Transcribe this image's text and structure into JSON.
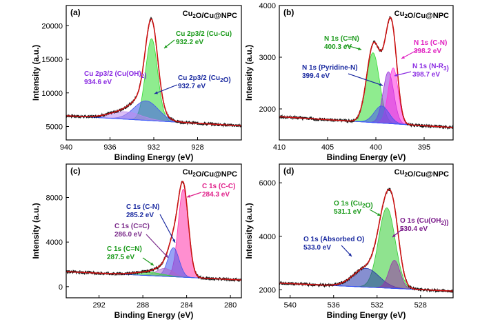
{
  "chart_data": [
    {
      "type": "line",
      "panel_label": "(a)",
      "title": "Cu2O/Cu@NPC",
      "xlabel": "Binding Energy (eV)",
      "ylabel": "Intensity (a.u.)",
      "xlim": [
        940,
        924
      ],
      "ylim": [
        3000,
        23000
      ],
      "xticks": [
        940,
        936,
        932,
        928
      ],
      "yticks": [
        5000,
        10000,
        15000,
        20000
      ],
      "baseline": {
        "x": [
          940,
          924
        ],
        "y": [
          6600,
          5100
        ]
      },
      "components": [
        {
          "name": "Cu 2p3/2 (Cu-Cu)",
          "center": 932.2,
          "fwhm": 1.3,
          "height": 12200,
          "color": "#33dd33"
        },
        {
          "name": "Cu 2p3/2 (Cu2O)",
          "center": 932.7,
          "fwhm": 2.6,
          "height": 2900,
          "color": "#4455ee"
        },
        {
          "name": "Cu 2p3/2 (Cu(OH)2)",
          "center": 934.6,
          "fwhm": 3.4,
          "height": 1100,
          "color": "#bb88ee"
        }
      ],
      "annotations": [
        {
          "lines": [
            "Cu 2p3/2 (Cu-Cu)",
            "932.2 eV"
          ],
          "color": "#1a9a1a"
        },
        {
          "lines": [
            "Cu 2p3/2 (Cu2O)",
            "932.7 eV"
          ],
          "color": "#1a2aa0"
        },
        {
          "lines": [
            "Cu 2p3/2 (Cu(OH)2)",
            "934.6 eV"
          ],
          "color": "#8a2be2"
        }
      ]
    },
    {
      "type": "line",
      "panel_label": "(b)",
      "title": "Cu2O/Cu@NPC",
      "xlabel": "Binding Energy (eV)",
      "ylabel": "Intensity (a.u.)",
      "xlim": [
        410,
        392
      ],
      "ylim": [
        1400,
        4000
      ],
      "xticks": [
        410,
        405,
        400,
        395
      ],
      "yticks": [
        2000,
        3000,
        4000
      ],
      "baseline": {
        "x": [
          410,
          392
        ],
        "y": [
          1850,
          1640
        ]
      },
      "components": [
        {
          "name": "N 1s (C=N)",
          "center": 400.3,
          "fwhm": 1.6,
          "height": 1350,
          "color": "#33dd33"
        },
        {
          "name": "N 1s (Pyridine-N)",
          "center": 399.4,
          "fwhm": 1.8,
          "height": 330,
          "color": "#4455ee"
        },
        {
          "name": "N 1s (N-R3)",
          "center": 398.7,
          "fwhm": 1.3,
          "height": 1000,
          "color": "#9933dd"
        },
        {
          "name": "N 1s (C-N)",
          "center": 398.2,
          "fwhm": 1.2,
          "height": 1080,
          "color": "#ff33dd"
        }
      ],
      "annotations": [
        {
          "lines": [
            "N 1s (C=N)",
            "400.3 eV"
          ],
          "color": "#1a9a1a"
        },
        {
          "lines": [
            "N 1s (Pyridine-N)",
            "399.4 eV"
          ],
          "color": "#1a2aa0"
        },
        {
          "lines": [
            "N 1s (C-N)",
            "398.2 eV"
          ],
          "color": "#e020c0"
        },
        {
          "lines": [
            "N 1s (N-R3)",
            "398.7 eV"
          ],
          "color": "#8a2be2"
        }
      ]
    },
    {
      "type": "line",
      "panel_label": "(c)",
      "title": "Cu2O/Cu@NPC",
      "xlabel": "Binding Energy (eV)",
      "ylabel": "Intensity (a.u.)",
      "xlim": [
        295,
        279
      ],
      "ylim": [
        -1000,
        11000
      ],
      "xticks": [
        292,
        288,
        284,
        280
      ],
      "yticks": [
        0,
        4000,
        8000
      ],
      "baseline": {
        "x": [
          295,
          279
        ],
        "y": [
          1350,
          600
        ]
      },
      "components": [
        {
          "name": "C 1s (C-C)",
          "center": 284.3,
          "fwhm": 1.1,
          "height": 7900,
          "color": "#ff33aa"
        },
        {
          "name": "C 1s (C-N)",
          "center": 285.2,
          "fwhm": 1.2,
          "height": 2600,
          "color": "#4455ee"
        },
        {
          "name": "C 1s (C=C)",
          "center": 286.0,
          "fwhm": 1.8,
          "height": 700,
          "color": "#aa66cc"
        },
        {
          "name": "C 1s (C=N)",
          "center": 287.5,
          "fwhm": 3.0,
          "height": 300,
          "color": "#33dd33"
        }
      ],
      "annotations": [
        {
          "lines": [
            "C 1s (C-C)",
            "284.3 eV"
          ],
          "color": "#e0208a"
        },
        {
          "lines": [
            "C 1s (C-N)",
            "285.2 eV"
          ],
          "color": "#1a2aa0"
        },
        {
          "lines": [
            "C 1s (C=C)",
            "286.0 eV"
          ],
          "color": "#7a2a8a"
        },
        {
          "lines": [
            "C 1s (C=N)",
            "287.5 eV"
          ],
          "color": "#1a9a1a"
        }
      ]
    },
    {
      "type": "line",
      "panel_label": "(d)",
      "title": "Cu2O/Cu@NPC",
      "xlabel": "Binding Energy (eV)",
      "ylabel": "Intensity (a.u.)",
      "xlim": [
        541,
        525
      ],
      "ylim": [
        1700,
        6700
      ],
      "xticks": [
        540,
        536,
        532,
        528
      ],
      "yticks": [
        2000,
        4000,
        6000
      ],
      "baseline": {
        "x": [
          541,
          525
        ],
        "y": [
          2250,
          1950
        ]
      },
      "components": [
        {
          "name": "O 1s (Cu2O)",
          "center": 531.1,
          "fwhm": 1.8,
          "height": 3000,
          "color": "#33cc33"
        },
        {
          "name": "O 1s (Cu(OH2))",
          "center": 530.4,
          "fwhm": 1.2,
          "height": 1050,
          "color": "#9933aa"
        },
        {
          "name": "O 1s (Absorbed O)",
          "center": 533.0,
          "fwhm": 2.8,
          "height": 700,
          "color": "#2233aa"
        }
      ],
      "annotations": [
        {
          "lines": [
            "O 1s (Cu2O)",
            "531.1 eV"
          ],
          "color": "#1a9a1a"
        },
        {
          "lines": [
            "O 1s (Cu(OH2))",
            "530.4 eV"
          ],
          "color": "#7a1a8a"
        },
        {
          "lines": [
            "O 1s (Absorbed O)",
            "533.0 eV"
          ],
          "color": "#1a2aa0"
        }
      ]
    }
  ]
}
